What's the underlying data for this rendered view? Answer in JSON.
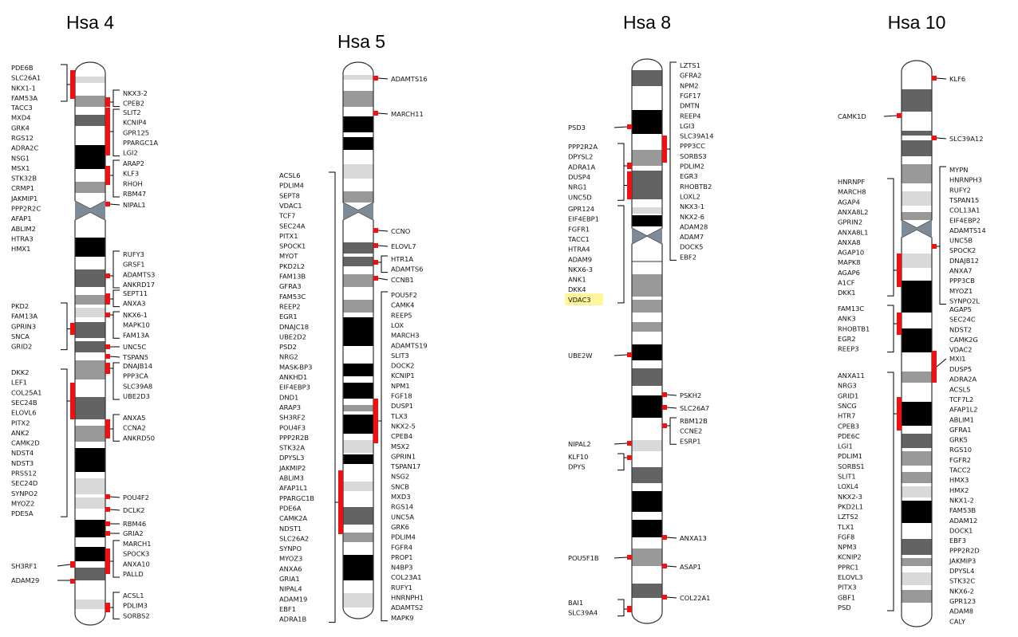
{
  "chromosomes": [
    {
      "title": "Hsa 4",
      "groups": [
        {
          "side": "left",
          "genes": [
            "PDE6B",
            "SLC26A1",
            "NKX1-1",
            "FAM53A"
          ]
        },
        {
          "side": "left",
          "genes": [
            "TACC3",
            "MXD4",
            "GRK4",
            "RGS12",
            "ADRA2C",
            "NSG1",
            "MSX1",
            "STK32B",
            "CRMP1",
            "JAKMIP1",
            "PPP2R2C",
            "AFAP1",
            "ABLIM2",
            "HTRA3",
            "HMX1"
          ]
        },
        {
          "side": "right",
          "genes": [
            "NKX3-2",
            "CPEB2"
          ]
        },
        {
          "side": "right",
          "genes": [
            "SLIT2",
            "KCNIP4",
            "GPR125",
            "PPARGC1A",
            "LGI2"
          ]
        },
        {
          "side": "right",
          "genes": [
            "ARAP2",
            "KLF3",
            "RHOH",
            "RBM47"
          ]
        },
        {
          "side": "right",
          "genes": [
            "NIPAL1"
          ]
        },
        {
          "side": "right",
          "genes": [
            "RUFY3",
            "GRSF1",
            "ADAMTS3",
            "ANKRD17"
          ]
        },
        {
          "side": "right",
          "genes": [
            "SEPT11",
            "ANXA3"
          ]
        },
        {
          "side": "left",
          "genes": [
            "PKD2",
            "FAM13A",
            "GPRIN3",
            "SNCA",
            "GRID2"
          ]
        },
        {
          "side": "right",
          "genes": [
            "NKX6-1",
            "MAPK10",
            "FAM13A"
          ]
        },
        {
          "side": "right",
          "genes": [
            "UNC5C"
          ]
        },
        {
          "side": "right",
          "genes": [
            "TSPAN5"
          ]
        },
        {
          "side": "right",
          "genes": [
            "DNAJB14",
            "PPP3CA",
            "SLC39A8",
            "UBE2D3"
          ]
        },
        {
          "side": "left",
          "genes": [
            "DKK2",
            "LEF1",
            "COL25A1",
            "SEC24B",
            "ELOVL6",
            "PITX2",
            "ANK2",
            "CAMK2D",
            "NDST4",
            "NDST3",
            "PRSS12",
            "SEC24D",
            "SYNPO2",
            "MYOZ2",
            "PDE5A"
          ]
        },
        {
          "side": "right",
          "genes": [
            "ANXA5",
            "CCNA2",
            "ANKRD50"
          ]
        },
        {
          "side": "right",
          "genes": [
            "POU4F2"
          ]
        },
        {
          "side": "right",
          "genes": [
            "DCLK2"
          ]
        },
        {
          "side": "right",
          "genes": [
            "RBM46"
          ]
        },
        {
          "side": "right",
          "genes": [
            "GRIA2"
          ]
        },
        {
          "side": "right",
          "genes": [
            "MARCH1",
            "SPOCK3",
            "ANXA10",
            "PALLD"
          ]
        },
        {
          "side": "left",
          "genes": [
            "SH3RF1"
          ]
        },
        {
          "side": "left",
          "genes": [
            "ADAM29"
          ]
        },
        {
          "side": "right",
          "genes": [
            "ACSL1",
            "PDLIM3",
            "SORBS2"
          ]
        }
      ]
    },
    {
      "title": "Hsa 5",
      "groups": [
        {
          "side": "right",
          "genes": [
            "ADAMTS16"
          ]
        },
        {
          "side": "right",
          "genes": [
            "MARCH11"
          ]
        },
        {
          "side": "left",
          "genes": [
            "ACSL6",
            "PDLIM4",
            "SEPT8",
            "VDAC1",
            "TCF7",
            "SEC24A",
            "PITX1",
            "SPOCK1",
            "MYOT",
            "PKD2L2",
            "FAM13B",
            "GFRA3",
            "FAM53C",
            "REEP2",
            "EGR1",
            "DNAJC18",
            "UBE2D2",
            "PSD2",
            "NRG2",
            "MASK-BP3",
            "ANKHD1",
            "EIF4EBP3",
            "DND1",
            "ARAP3",
            "SH3RF2",
            "POU4F3",
            "PPP2R2B",
            "STK32A",
            "DPYSL3",
            "JAKMIP2",
            "ABLIM3",
            "AFAP1L1",
            "PPARGC1B",
            "PDE6A",
            "CAMK2A",
            "NDST1",
            "SLC26A2",
            "SYNPO",
            "MYOZ3",
            "ANXA6",
            "GRIA1",
            "NIPAL4",
            "ADAM19",
            "EBF1",
            "ADRA1B"
          ]
        },
        {
          "side": "right",
          "genes": [
            "CCNO"
          ]
        },
        {
          "side": "right",
          "genes": [
            "ELOVL7"
          ]
        },
        {
          "side": "right",
          "genes": [
            "HTR1A",
            "ADAMTS6"
          ]
        },
        {
          "side": "right",
          "genes": [
            "CCNB1"
          ]
        },
        {
          "side": "right",
          "genes": [
            "POU5F2",
            "CAMK4",
            "REEP5",
            "LOX",
            "MARCH3",
            "ADAMTS19",
            "SLIT3",
            "DOCK2",
            "KCNIP1",
            "NPM1",
            "FGF18",
            "DUSP1",
            "TLX3",
            "NKX2-5",
            "CPEB4",
            "MSX2",
            "GPRIN1",
            "TSPAN17",
            "NSG2",
            "SNCB",
            "MXD3",
            "RGS14",
            "UNC5A",
            "GRK6",
            "PDLIM4",
            "FGFR4",
            "PROP1",
            "N4BP3",
            "COL23A1",
            "RUFY1",
            "HNRNPH1",
            "ADAMTS2",
            "MAPK9"
          ]
        }
      ]
    },
    {
      "title": "Hsa 8",
      "groups": [
        {
          "side": "right",
          "genes": [
            "LZTS1",
            "GFRA2",
            "NPM2",
            "FGF17",
            "DMTN",
            "REEP4",
            "LGI3",
            "SLC39A14",
            "PPP3CC",
            "SORBS3",
            "PDLIM2",
            "EGR3",
            "RHOBTB2",
            "LOXL2",
            "NKX3-1",
            "NKX2-6",
            "ADAM28",
            "ADAM7",
            "DOCK5",
            "EBF2"
          ]
        },
        {
          "side": "left",
          "genes": [
            "PSD3"
          ]
        },
        {
          "side": "left",
          "genes": [
            "PPP2R2A",
            "DPYSL2",
            "ADRA1A",
            "DUSP4",
            "NRG1",
            "UNC5D"
          ]
        },
        {
          "side": "left",
          "genes": [
            "GPR124",
            "EIF4EBP1",
            "FGFR1",
            "TACC1",
            "HTRA4",
            "ADAM9",
            "NKX6-3",
            "ANK1",
            "DKK4",
            "VDAC3"
          ]
        },
        {
          "side": "left",
          "genes": [
            "UBE2W"
          ]
        },
        {
          "side": "right",
          "genes": [
            "PSKH2"
          ]
        },
        {
          "side": "right",
          "genes": [
            "SLC26A7"
          ]
        },
        {
          "side": "right",
          "genes": [
            "RBM12B",
            "CCNE2",
            "ESRP1"
          ]
        },
        {
          "side": "left",
          "genes": [
            "NIPAL2"
          ]
        },
        {
          "side": "left",
          "genes": [
            "KLF10",
            "DPYS"
          ]
        },
        {
          "side": "right",
          "genes": [
            "ANXA13"
          ]
        },
        {
          "side": "left",
          "genes": [
            "POU5F1B"
          ]
        },
        {
          "side": "right",
          "genes": [
            "ASAP1"
          ]
        },
        {
          "side": "right",
          "genes": [
            "COL22A1"
          ]
        },
        {
          "side": "left",
          "genes": [
            "BAI1",
            "SLC39A4"
          ]
        }
      ]
    },
    {
      "title": "Hsa 10",
      "groups": [
        {
          "side": "right",
          "genes": [
            "KLF6"
          ]
        },
        {
          "side": "left",
          "genes": [
            "CAMK1D"
          ]
        },
        {
          "side": "right",
          "genes": [
            "SLC39A12"
          ]
        },
        {
          "side": "right",
          "genes": [
            "MYPN",
            "HNRNPH3",
            "RUFY2",
            "TSPAN15",
            "COL13A1",
            "EIF4EBP2",
            "ADAMTS14",
            "UNC5B",
            "SPOCK2",
            "DNAJB12",
            "ANXA7",
            "PPP3CB",
            "MYOZ1",
            "SYNPO2L"
          ]
        },
        {
          "side": "left",
          "genes": [
            "HNRNPF",
            "MARCH8",
            "AGAP4",
            "ANXA8L2",
            "GPRIN2",
            "ANXA8L1",
            "ANXA8",
            "AGAP10",
            "MAPK8",
            "AGAP6",
            "A1CF",
            "DKK1"
          ]
        },
        {
          "side": "left",
          "genes": [
            "FAM13C",
            "ANK3",
            "RHOBTB1",
            "EGR2",
            "REEP3"
          ]
        },
        {
          "side": "right",
          "genes": [
            "AGAP5",
            "SEC24C",
            "NDST2",
            "CAMK2G",
            "VDAC2"
          ]
        },
        {
          "side": "right",
          "genes": [
            "MXI1"
          ]
        },
        {
          "side": "right",
          "genes": [
            "DUSP5",
            "ADRA2A",
            "ACSL5",
            "TCF7L2",
            "AFAP1L2",
            "ABLIM1",
            "GFRA1",
            "GRK5",
            "RGS10",
            "FGFR2",
            "TACC2",
            "HMX3",
            "HMX2",
            "NKX1-2",
            "FAM53B",
            "ADAM12",
            "DOCK1",
            "EBF3",
            "PPP2R2D",
            "JAKMIP3",
            "DPYSL4",
            "STK32C",
            "NKX6-2",
            "GPR123",
            "ADAM8",
            "CALY"
          ]
        },
        {
          "side": "left",
          "genes": [
            "ANXA11",
            "NRG3",
            "GRID1",
            "SNCG",
            "HTR7",
            "CPEB3",
            "PDE6C",
            "LGI1",
            "PDLIM1",
            "SORBS1",
            "SLIT1",
            "LOXL4",
            "NKX2-3",
            "PKD2L1",
            "LZTS2",
            "TLX1",
            "FGF8",
            "NPM3",
            "KCNIP2",
            "PPRC1",
            "ELOVL3",
            "PITX3",
            "GBF1",
            "PSD"
          ]
        }
      ]
    }
  ],
  "highlight": {
    "chromosome": "Hsa 8",
    "gene": "VDAC3",
    "color": "#fff59a"
  },
  "colors": {
    "marker": "#ee1111",
    "centromere": "#7e8a96",
    "band_dark": "#000000",
    "band_mid": "#636363",
    "band_light": "#999999",
    "band_pale": "#d9d9d9"
  }
}
